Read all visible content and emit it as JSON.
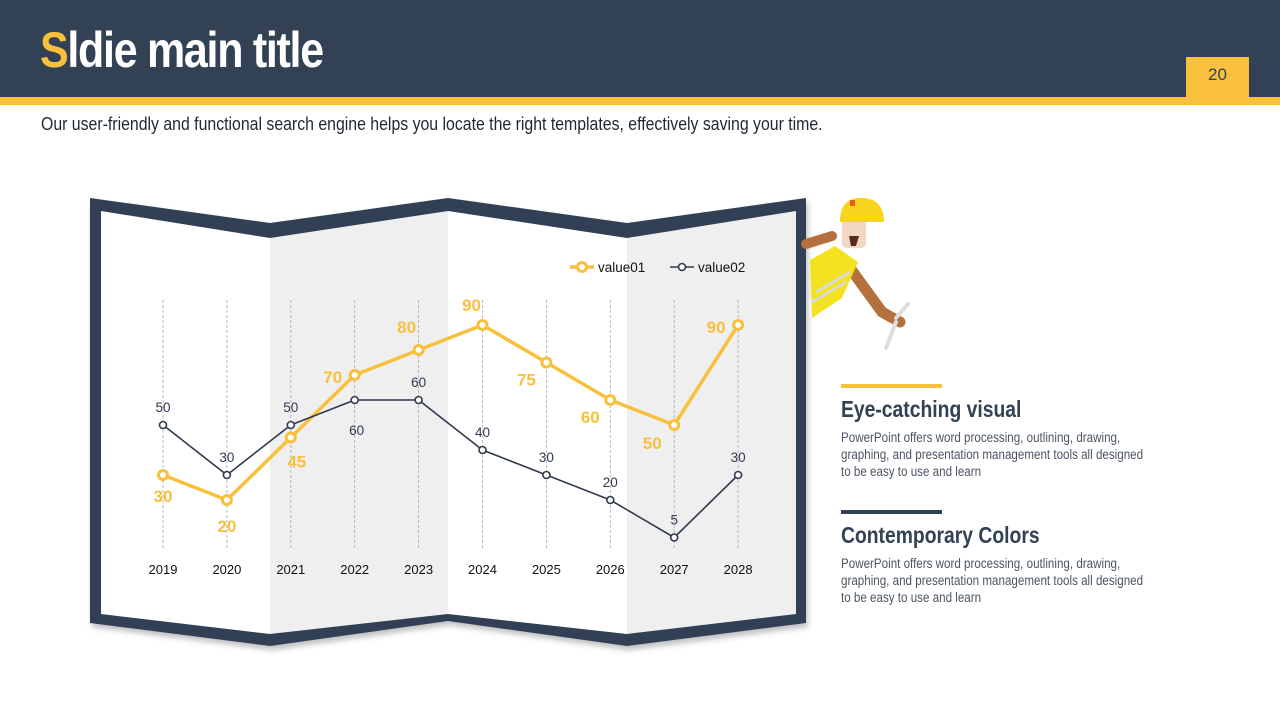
{
  "slide": {
    "title_first": "S",
    "title_rest": "ldie main title",
    "page_number": "20",
    "subtitle": "Our user-friendly and functional search engine helps you locate the right templates, effectively saving your time."
  },
  "colors": {
    "navy": "#334155",
    "yellow": "#f9c03d",
    "panel_shade": "#efefef"
  },
  "sections": [
    {
      "title": "Eye-catching visual",
      "text": "PowerPoint offers word processing, outlining, drawing, graphing, and presentation management tools all designed to be easy to use and learn",
      "accent": "#f9c03d"
    },
    {
      "title": "Contemporary Colors",
      "text": "PowerPoint offers word processing, outlining, drawing, graphing, and presentation management tools all designed to be easy to use and learn",
      "accent": "#334155"
    }
  ],
  "chart_data": {
    "type": "line",
    "categories": [
      "2019",
      "2020",
      "2021",
      "2022",
      "2023",
      "2024",
      "2025",
      "2026",
      "2027",
      "2028"
    ],
    "series": [
      {
        "name": "value01",
        "values": [
          30,
          20,
          45,
          70,
          80,
          90,
          75,
          60,
          50,
          90
        ],
        "color": "#f9c03d"
      },
      {
        "name": "value02",
        "values": [
          50,
          30,
          50,
          60,
          60,
          40,
          30,
          20,
          5,
          30
        ],
        "color": "#2f3a4f"
      }
    ],
    "ylim": [
      0,
      100
    ],
    "legend": "top-right",
    "grid": "vertical dashed"
  }
}
